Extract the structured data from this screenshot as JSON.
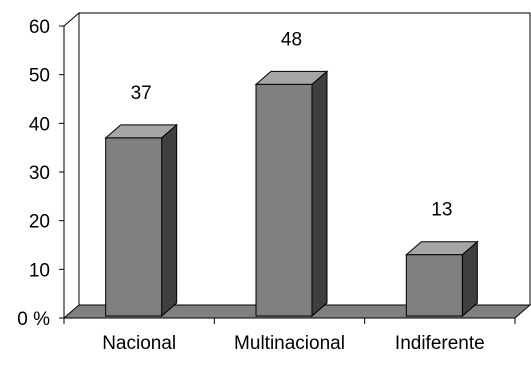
{
  "chart_data": {
    "type": "bar",
    "style": "3d",
    "categories": [
      "Nacional",
      "Multinacional",
      "Indiferente"
    ],
    "values": [
      37,
      48,
      13
    ],
    "data_labels": [
      "37",
      "48",
      "13"
    ],
    "ylim": [
      0,
      60
    ],
    "yticks": [
      "0 %",
      "10",
      "20",
      "30",
      "40",
      "50",
      "60"
    ],
    "grid": false,
    "legend": "none",
    "colors": {
      "bar_front": "#808080",
      "bar_top": "#a6a6a6",
      "bar_side": "#3f3f3f",
      "floor": "#808080",
      "axis": "#000000"
    }
  }
}
